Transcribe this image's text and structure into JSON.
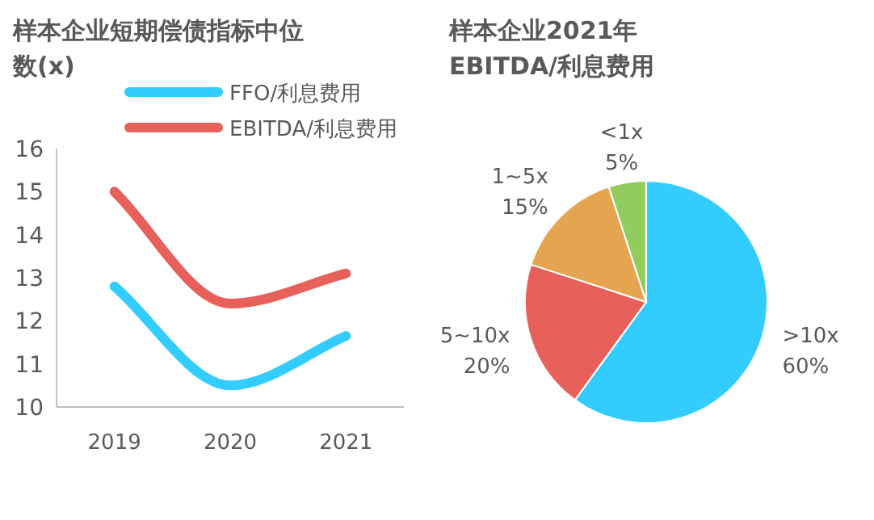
{
  "chart_data": [
    {
      "type": "line",
      "title": "样本企业短期偿债指标中位数(x)",
      "categories": [
        "2019",
        "2020",
        "2021"
      ],
      "ylim": [
        10,
        16
      ],
      "yticks": [
        10,
        11,
        12,
        13,
        14,
        15,
        16
      ],
      "legend": "top",
      "grid": false,
      "series": [
        {
          "name": "FFO/利息费用",
          "color": "#33ccff",
          "values": [
            12.8,
            10.5,
            11.65
          ]
        },
        {
          "name": "EBITDA/利息费用",
          "color": "#e8605a",
          "values": [
            15.0,
            12.4,
            13.1
          ]
        }
      ]
    },
    {
      "type": "pie",
      "title": "样本企业2021年EBITDA/利息费用",
      "categories": [
        ">10x",
        "5~10x",
        "1~5x",
        "<1x"
      ],
      "values": [
        60,
        20,
        15,
        5
      ],
      "colors": [
        "#33ccff",
        "#e8605a",
        "#e5a550",
        "#92cc5e"
      ],
      "value_labels": [
        "60%",
        "20%",
        "15%",
        "5%"
      ]
    }
  ]
}
